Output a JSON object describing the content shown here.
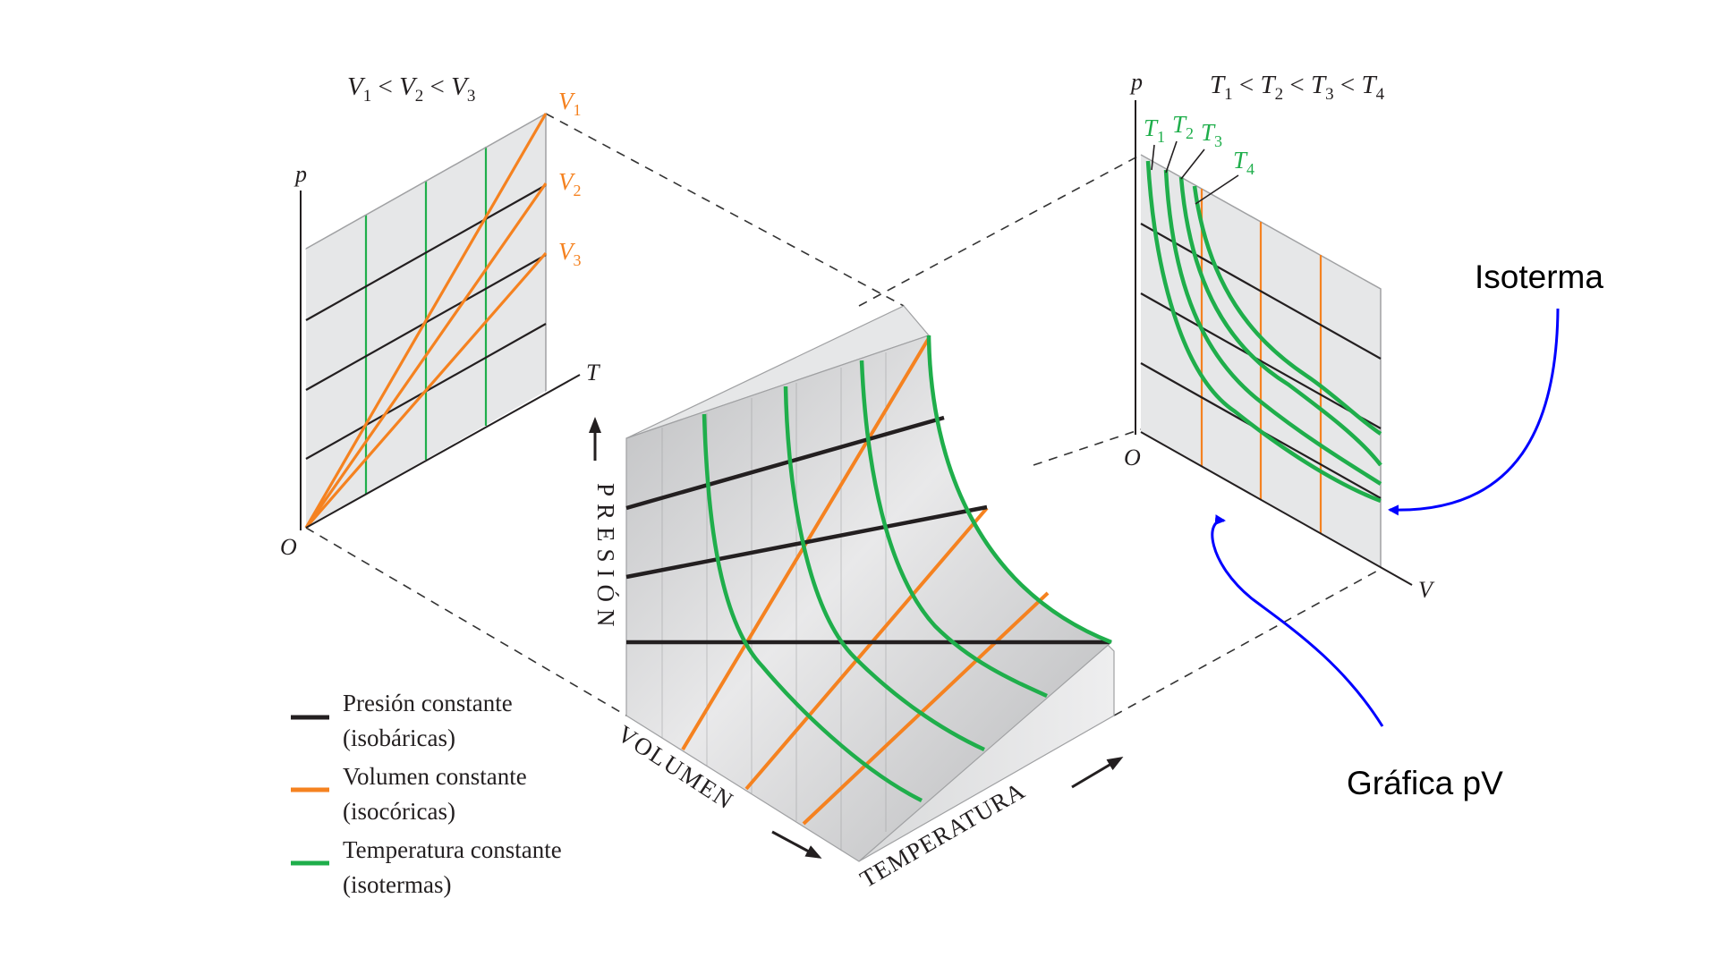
{
  "left_panel": {
    "inequality": {
      "v1": "V",
      "s1": "1",
      "lt1": " < ",
      "v2": "V",
      "s2": "2",
      "lt2": " < ",
      "v3": "V",
      "s3": "3"
    },
    "axis_p": "p",
    "axis_t": "T",
    "origin": "O",
    "lines": [
      {
        "v": "V",
        "s": "1"
      },
      {
        "v": "V",
        "s": "2"
      },
      {
        "v": "V",
        "s": "3"
      }
    ]
  },
  "right_panel": {
    "inequality": {
      "t1": "T",
      "s1": "1",
      "lt1": " < ",
      "t2": "T",
      "s2": "2",
      "lt2": " < ",
      "t3": "T",
      "s3": "3",
      "lt3": " < ",
      "t4": "T",
      "s4": "4"
    },
    "axis_p": "p",
    "axis_v": "V",
    "origin": "O",
    "curves": [
      {
        "t": "T",
        "s": "1"
      },
      {
        "t": "T",
        "s": "2"
      },
      {
        "t": "T",
        "s": "3"
      },
      {
        "t": "T",
        "s": "4"
      }
    ]
  },
  "surface": {
    "axis_pressure": "PRESIÓN",
    "axis_volume": "VOLUMEN",
    "axis_temperature": "TEMPERATURA"
  },
  "legend": [
    {
      "line1": "Presión constante",
      "line2": "(isobáricas)",
      "color": "#231f20"
    },
    {
      "line1": "Volumen constante",
      "line2": "(isocóricas)",
      "color": "#f58220"
    },
    {
      "line1": "Temperatura constante",
      "line2": "(isotermas)",
      "color": "#1fae4b"
    }
  ],
  "annotations": {
    "isoterma": "Isoterma",
    "grafica_pv": "Gráfica pV",
    "arrow_color": "#0000ff"
  },
  "colors": {
    "isobar": "#231f20",
    "isochore": "#f58220",
    "isotherm": "#1fae4b",
    "panel_fill": "#e6e7e8"
  }
}
